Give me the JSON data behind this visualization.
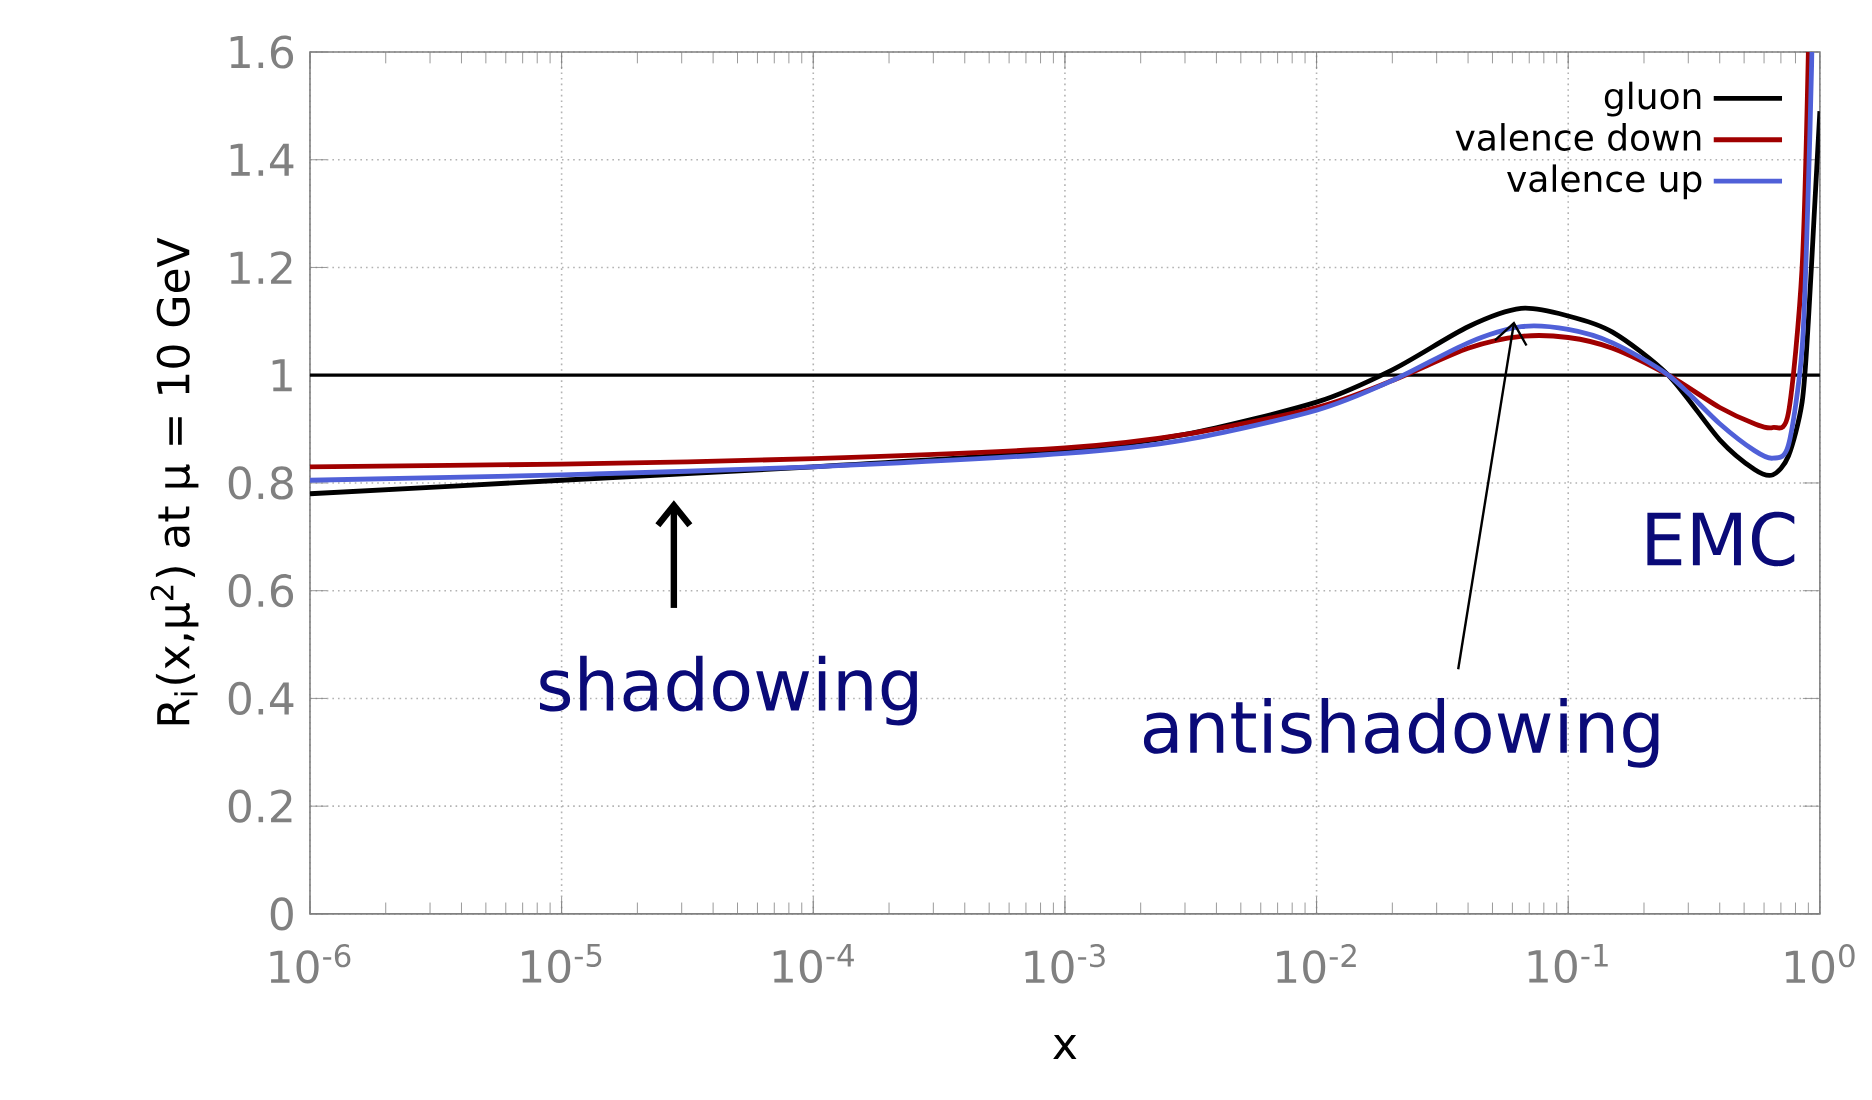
{
  "chart_data": {
    "type": "line",
    "xlabel": "x",
    "ylabel": "R$_{i}$(x,μ$^{2}$) at μ = 10 GeV",
    "log": "x",
    "grid": true,
    "legend": "top right",
    "line_style": "solid",
    "xlim": [
      1e-06,
      1
    ],
    "ylim": [
      0,
      1.6
    ],
    "xticks": [
      {
        "value": 1e-06,
        "label": "10$^{-6}$"
      },
      {
        "value": 1e-05,
        "label": "10$^{-5}$"
      },
      {
        "value": 0.0001,
        "label": "10$^{-4}$"
      },
      {
        "value": 0.001,
        "label": "10$^{-3}$"
      },
      {
        "value": 0.01,
        "label": "10$^{-2}$"
      },
      {
        "value": 0.1,
        "label": "10$^{-1}$"
      },
      {
        "value": 1,
        "label": "10$^{0}$"
      }
    ],
    "yticks": [
      0,
      0.2,
      0.4,
      0.6,
      0.8,
      1,
      1.2,
      1.4,
      1.6
    ],
    "ref_lines": [
      {
        "axis": "y",
        "value": 1,
        "color": "#000000"
      }
    ],
    "annotations": [
      "shadowing",
      {
        "text": "antishadowing",
        "x": 0.061,
        "y": 1.1
      },
      "EMC"
    ],
    "series": [
      {
        "name": "gluon",
        "color": "#000000",
        "x": [
          1e-06,
          1e-05,
          0.0001,
          0.001,
          0.003,
          0.01,
          0.02,
          0.04,
          0.065,
          0.1,
          0.15,
          0.25,
          0.4,
          0.55,
          0.65,
          0.75,
          0.85,
          0.9,
          0.95,
          1.0
        ],
        "values": [
          0.78,
          0.805,
          0.83,
          0.86,
          0.89,
          0.95,
          1.01,
          1.09,
          1.124,
          1.11,
          1.08,
          1.0,
          0.88,
          0.825,
          0.815,
          0.85,
          0.95,
          1.1,
          1.3,
          1.49
        ]
      },
      {
        "name": "valence down",
        "color": "#a00000",
        "x": [
          1e-06,
          1e-05,
          0.0001,
          0.001,
          0.003,
          0.01,
          0.02,
          0.04,
          0.065,
          0.1,
          0.15,
          0.25,
          0.4,
          0.55,
          0.65,
          0.75,
          0.85,
          0.9
        ],
        "values": [
          0.83,
          0.835,
          0.845,
          0.865,
          0.89,
          0.94,
          0.99,
          1.05,
          1.072,
          1.07,
          1.05,
          1.0,
          0.94,
          0.91,
          0.903,
          0.93,
          1.2,
          1.6
        ]
      },
      {
        "name": "valence up",
        "color": "#5060d8",
        "x": [
          1e-06,
          1e-05,
          0.0001,
          0.001,
          0.003,
          0.01,
          0.02,
          0.04,
          0.065,
          0.1,
          0.15,
          0.25,
          0.4,
          0.55,
          0.65,
          0.75,
          0.85,
          0.9,
          0.93
        ],
        "values": [
          0.805,
          0.815,
          0.83,
          0.855,
          0.88,
          0.935,
          0.99,
          1.06,
          1.09,
          1.085,
          1.06,
          1.0,
          0.91,
          0.86,
          0.846,
          0.87,
          1.05,
          1.35,
          1.6
        ]
      }
    ]
  }
}
